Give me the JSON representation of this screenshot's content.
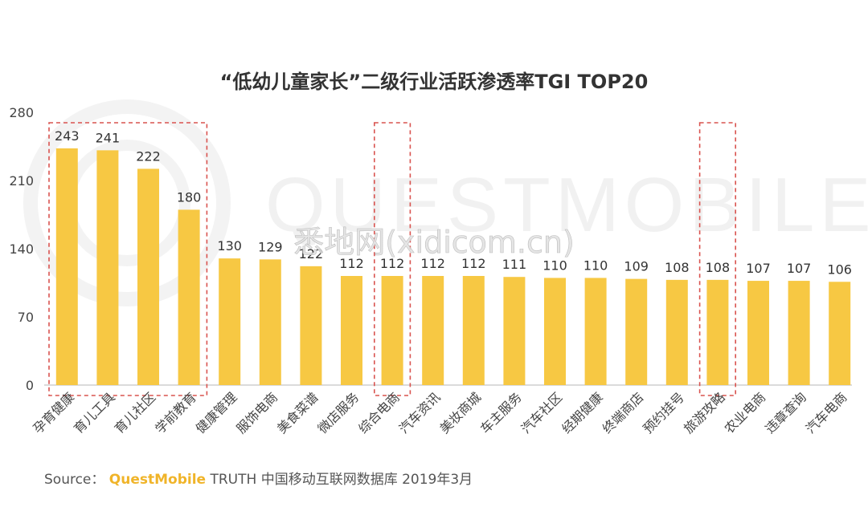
{
  "chart_data": {
    "type": "bar",
    "title": "“低幼儿童家长”二级行业活跃渗透率TGI TOP20",
    "categories": [
      "孕育健康",
      "育儿工具",
      "育儿社区",
      "学前教育",
      "健康管理",
      "服饰电商",
      "美食菜谱",
      "微店服务",
      "综合电商",
      "汽车资讯",
      "美妆商城",
      "车主服务",
      "汽车社区",
      "经期健康",
      "终端商店",
      "预约挂号",
      "旅游攻略",
      "农业电商",
      "违章查询",
      "汽车电商"
    ],
    "values": [
      243,
      241,
      222,
      180,
      130,
      129,
      122,
      112,
      112,
      112,
      112,
      111,
      110,
      110,
      109,
      108,
      108,
      107,
      107,
      106
    ],
    "data_labels": [
      "243",
      "241",
      "222",
      "180",
      "130",
      "129",
      "122",
      "112",
      "112",
      "112",
      "112",
      "111",
      "110",
      "110",
      "109",
      "108",
      "108",
      "107",
      "107",
      "106"
    ],
    "y_ticks": [
      0,
      70,
      140,
      210,
      280
    ],
    "y_tick_labels": [
      "0",
      "70",
      "140",
      "210",
      "280"
    ],
    "ylim": [
      0,
      280
    ],
    "bar_color": "#f7c843",
    "highlight_groups": [
      {
        "from": 0,
        "to": 3,
        "color": "#d9534f"
      },
      {
        "from": 8,
        "to": 8,
        "color": "#d9534f"
      },
      {
        "from": 16,
        "to": 16,
        "color": "#d9534f"
      }
    ],
    "grid": false
  },
  "watermark": {
    "text": "QUESTMOBILE",
    "overlay_text": "悉地网(xidicom.cn)"
  },
  "source": {
    "label": "Source：",
    "brand": "QuestMobile",
    "text": "TRUTH 中国移动互联网数据库 2019年3月"
  }
}
